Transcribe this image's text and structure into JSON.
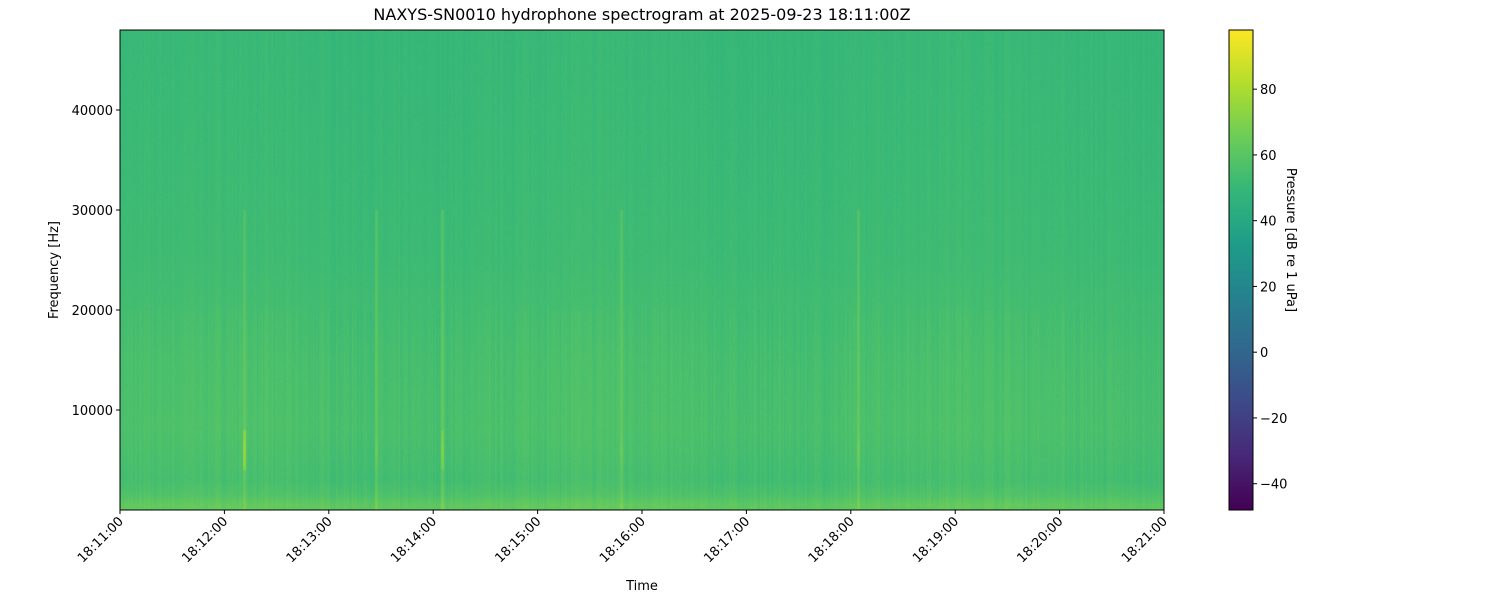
{
  "chart_data": {
    "type": "heatmap",
    "title": "NAXYS-SN0010 hydrophone spectrogram at 2025-09-23 18:11:00Z",
    "xlabel": "Time",
    "ylabel": "Frequency [Hz]",
    "colorbar_label": "Pressure [dB re 1 uPa]",
    "colormap": "viridis",
    "xlim": [
      "18:11:00",
      "18:21:00"
    ],
    "ylim": [
      0,
      48000
    ],
    "clim": [
      -48,
      98
    ],
    "x_ticks": [
      "18:11:00",
      "18:12:00",
      "18:13:00",
      "18:14:00",
      "18:15:00",
      "18:16:00",
      "18:17:00",
      "18:18:00",
      "18:19:00",
      "18:20:00",
      "18:21:00"
    ],
    "y_ticks": [
      10000,
      20000,
      30000,
      40000
    ],
    "colorbar_ticks": [
      -40,
      -20,
      0,
      20,
      40,
      60,
      80
    ],
    "band_levels_db": [
      {
        "freq_hz": 500,
        "level": 62
      },
      {
        "freq_hz": 1500,
        "level": 57
      },
      {
        "freq_hz": 3000,
        "level": 54
      },
      {
        "freq_hz": 8000,
        "level": 56
      },
      {
        "freq_hz": 15000,
        "level": 55
      },
      {
        "freq_hz": 25000,
        "level": 52
      },
      {
        "freq_hz": 35000,
        "level": 51
      },
      {
        "freq_hz": 48000,
        "level": 50
      }
    ],
    "transients": [
      {
        "time": "18:12:11",
        "freq_hz": 6000,
        "level": 75
      },
      {
        "time": "18:14:05",
        "freq_hz": 6000,
        "level": 70
      },
      {
        "time": "18:13:27",
        "freq_hz": 6000,
        "level": 65
      },
      {
        "time": "18:15:48",
        "freq_hz": 6000,
        "level": 65
      },
      {
        "time": "18:18:04",
        "freq_hz": 6000,
        "level": 66
      }
    ]
  }
}
